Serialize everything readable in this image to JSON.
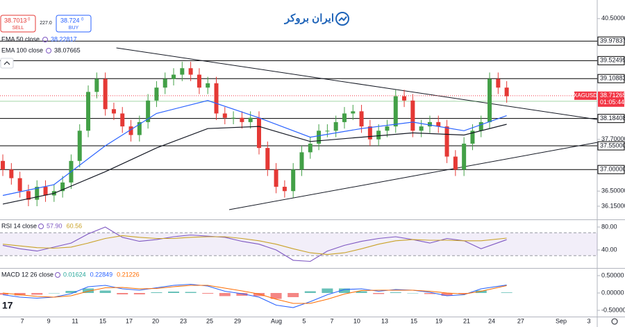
{
  "header": {
    "logo": "ایران بروکر",
    "sell": {
      "price": "38.7013",
      "pip": "0",
      "caption": "SELL"
    },
    "spread": "227.0",
    "buy": {
      "price": "38.724",
      "pip": "0",
      "caption": "BUY"
    }
  },
  "chart_data": [
    {
      "type": "candlestick",
      "xlim": [
        -0.33,
        69.6
      ],
      "ylim": [
        35.86,
        40.69
      ],
      "up_color": "#43a047",
      "down_color": "#e53935",
      "open": [
        37.2,
        37.0,
        36.8,
        36.5,
        36.3,
        36.6,
        36.4,
        36.5,
        36.7,
        37.2,
        37.9,
        38.8,
        39.1,
        38.4,
        38.3,
        38.0,
        37.8,
        38.1,
        38.6,
        38.9,
        39.1,
        39.2,
        39.35,
        39.2,
        38.9,
        39.0,
        38.3,
        38.2,
        38.2,
        38.1,
        38.2,
        37.5,
        37.0,
        36.6,
        36.5,
        37.0,
        37.4,
        37.6,
        37.9,
        37.9,
        38.1,
        38.3,
        38.35,
        38.0,
        37.7,
        37.9,
        38.0,
        38.7,
        38.6,
        37.9,
        38.0,
        38.1,
        38.0,
        37.3,
        37.0,
        37.6,
        37.9,
        38.1,
        39.1,
        38.9
      ],
      "high": [
        37.35,
        37.15,
        36.95,
        36.65,
        36.75,
        36.75,
        36.65,
        36.85,
        37.35,
        38.05,
        38.95,
        39.25,
        39.25,
        38.55,
        38.45,
        38.15,
        38.25,
        38.75,
        39.05,
        39.25,
        39.35,
        39.5,
        39.5,
        39.35,
        39.15,
        39.15,
        38.45,
        38.35,
        38.35,
        38.35,
        38.35,
        37.65,
        37.15,
        36.75,
        37.15,
        37.55,
        37.75,
        38.05,
        38.05,
        38.25,
        38.45,
        38.5,
        38.5,
        38.15,
        38.05,
        38.15,
        38.85,
        38.85,
        38.75,
        38.15,
        38.25,
        38.25,
        38.15,
        37.45,
        37.75,
        38.05,
        38.25,
        39.25,
        39.25,
        39.05
      ],
      "low": [
        36.85,
        36.65,
        36.35,
        36.15,
        36.15,
        36.25,
        36.25,
        36.35,
        36.55,
        37.05,
        37.75,
        38.65,
        38.25,
        38.15,
        37.85,
        37.65,
        37.65,
        37.95,
        38.45,
        38.75,
        38.95,
        39.05,
        39.05,
        38.75,
        38.75,
        38.15,
        38.05,
        38.05,
        37.95,
        37.95,
        37.35,
        36.85,
        36.45,
        36.35,
        36.35,
        36.85,
        37.25,
        37.45,
        37.75,
        37.75,
        37.95,
        38.15,
        37.85,
        37.55,
        37.55,
        37.75,
        37.85,
        38.45,
        37.75,
        37.75,
        37.85,
        37.85,
        37.15,
        36.85,
        36.85,
        37.45,
        37.75,
        37.95,
        38.75,
        38.55
      ],
      "close": [
        37.0,
        36.8,
        36.5,
        36.3,
        36.6,
        36.4,
        36.5,
        36.7,
        37.2,
        37.9,
        38.8,
        39.1,
        38.4,
        38.3,
        38.0,
        37.8,
        38.1,
        38.6,
        38.9,
        39.1,
        39.2,
        39.35,
        39.2,
        38.9,
        39.0,
        38.3,
        38.2,
        38.2,
        38.1,
        38.2,
        37.5,
        37.0,
        36.6,
        36.5,
        37.0,
        37.4,
        37.6,
        37.9,
        37.9,
        38.1,
        38.3,
        38.35,
        38.0,
        37.7,
        37.9,
        38.0,
        38.7,
        38.6,
        37.9,
        38.0,
        38.1,
        38.0,
        37.3,
        37.0,
        37.6,
        37.9,
        38.1,
        39.1,
        38.9,
        38.7
      ],
      "yticks": [
        {
          "value": 40.5,
          "label": "40.50000"
        },
        {
          "value": 37.7,
          "label": "37.70000"
        },
        {
          "value": 36.5,
          "label": "36.50000"
        },
        {
          "value": 36.15,
          "label": "36.15000"
        }
      ],
      "levels": [
        {
          "value": 39.97837,
          "label": "39.97837"
        },
        {
          "value": 39.52499,
          "label": "39.52499"
        },
        {
          "value": 39.10883,
          "label": "39.10883"
        },
        {
          "value": 38.18408,
          "label": "38.18408"
        },
        {
          "value": 37.55,
          "label": "37.55000"
        },
        {
          "value": 37.0,
          "label": "37.00000"
        }
      ],
      "series": [
        {
          "name": "EMA 50 close",
          "color": "#2962ff",
          "readout": 38.22817,
          "x": [
            0,
            6,
            12,
            18,
            24,
            30,
            36,
            42,
            48,
            54,
            59
          ],
          "values": [
            36.4,
            36.65,
            37.55,
            38.3,
            38.6,
            38.2,
            37.75,
            37.95,
            38.1,
            37.9,
            38.25
          ]
        },
        {
          "name": "EMA 100 close",
          "color": "#131722",
          "readout": 38.07665,
          "x": [
            0,
            6,
            12,
            18,
            24,
            30,
            36,
            42,
            48,
            54,
            59
          ],
          "values": [
            36.2,
            36.45,
            36.95,
            37.5,
            37.95,
            38.0,
            37.65,
            37.75,
            37.85,
            37.8,
            38.05
          ]
        }
      ],
      "trendlines": [
        {
          "x": [
            13.3,
            69.6
          ],
          "y": [
            39.82,
            38.16
          ]
        },
        {
          "x": [
            26.5,
            69.6
          ],
          "y": [
            36.07,
            37.63
          ]
        }
      ],
      "last_price": {
        "symbol": "XAGUSD",
        "value": 38.71265,
        "label": "38.71265",
        "countdown": "01:05:44",
        "color": "#f23645"
      },
      "marker": {
        "value": 38.58246,
        "label": "38.58246",
        "color": "#4caf50"
      }
    },
    {
      "type": "line",
      "title": "RSI 14 close",
      "xlim": [
        -0.33,
        69.6
      ],
      "ylim": [
        9.7,
        90.9
      ],
      "band": [
        30,
        70
      ],
      "band_color": "#7e57c2",
      "yticks": [
        {
          "value": 80,
          "label": "80.00"
        },
        {
          "value": 40,
          "label": "40.00"
        }
      ],
      "series": [
        {
          "color": "#7e57c2",
          "readout": {
            "value": 57.9,
            "label": "57.90"
          },
          "x": [
            0,
            2,
            4,
            6,
            8,
            10,
            12,
            14,
            16,
            18,
            20,
            22,
            24,
            26,
            28,
            30,
            32,
            34,
            36,
            38,
            40,
            42,
            44,
            46,
            48,
            50,
            52,
            54,
            56,
            59
          ],
          "values": [
            48,
            42,
            38,
            45,
            52,
            68,
            80,
            62,
            55,
            58,
            63,
            66,
            64,
            62,
            55,
            50,
            40,
            22,
            20,
            38,
            48,
            55,
            60,
            63,
            58,
            52,
            60,
            56,
            42,
            57.9
          ]
        },
        {
          "color": "#c9a227",
          "readout": {
            "value": 60.56,
            "label": "60.56"
          },
          "x": [
            0,
            2,
            4,
            6,
            8,
            10,
            12,
            14,
            16,
            18,
            20,
            22,
            24,
            26,
            28,
            30,
            32,
            34,
            36,
            38,
            40,
            42,
            44,
            46,
            48,
            50,
            52,
            54,
            56,
            59
          ],
          "values": [
            50,
            47,
            44,
            43,
            45,
            52,
            60,
            65,
            62,
            60,
            60,
            62,
            63,
            63,
            60,
            56,
            50,
            42,
            35,
            32,
            35,
            42,
            50,
            56,
            58,
            57,
            57,
            56,
            56,
            60.56
          ]
        }
      ]
    },
    {
      "type": "line",
      "title": "MACD 12 26 close",
      "xlim": [
        -0.33,
        69.6
      ],
      "ylim": [
        -0.66,
        0.68
      ],
      "yticks": [
        {
          "value": 0.5,
          "label": "0.50000"
        },
        {
          "value": 0,
          "label": "0.00000"
        },
        {
          "value": -0.5,
          "label": "-0.50000"
        }
      ],
      "xticks": [
        {
          "value": 2.28,
          "label": "7"
        },
        {
          "value": 5.37,
          "label": "9"
        },
        {
          "value": 8.46,
          "label": "11"
        },
        {
          "value": 11.71,
          "label": "15"
        },
        {
          "value": 14.8,
          "label": "17"
        },
        {
          "value": 17.89,
          "label": "20"
        },
        {
          "value": 21.14,
          "label": "23"
        },
        {
          "value": 24.23,
          "label": "25"
        },
        {
          "value": 27.48,
          "label": "29"
        },
        {
          "value": 32.03,
          "label": "Aug"
        },
        {
          "value": 35.28,
          "label": "5"
        },
        {
          "value": 38.54,
          "label": "7"
        },
        {
          "value": 41.46,
          "label": "10"
        },
        {
          "value": 44.72,
          "label": "13"
        },
        {
          "value": 48.13,
          "label": "15"
        },
        {
          "value": 51.06,
          "label": "19"
        },
        {
          "value": 54.31,
          "label": "21"
        },
        {
          "value": 57.24,
          "label": "24"
        },
        {
          "value": 60.65,
          "label": "27"
        },
        {
          "value": 65.37,
          "label": "Sep"
        },
        {
          "value": 68.62,
          "label": "3"
        }
      ],
      "series": [
        {
          "type": "bar",
          "color": "#26a69a",
          "negative_color": "#ef5350",
          "readout": 0.01624,
          "x": [
            0,
            2,
            4,
            6,
            8,
            10,
            12,
            14,
            16,
            18,
            20,
            22,
            24,
            26,
            28,
            30,
            32,
            34,
            36,
            38,
            40,
            42,
            44,
            46,
            48,
            50,
            52,
            54,
            56,
            59
          ],
          "values": [
            -0.05,
            -0.07,
            -0.05,
            0,
            0.06,
            0.13,
            0.07,
            -0.04,
            -0.04,
            0.02,
            0.04,
            0.03,
            -0.02,
            -0.09,
            -0.08,
            -0.09,
            -0.17,
            -0.12,
            0.05,
            0.13,
            0.13,
            0.05,
            -0.03,
            0.02,
            0,
            -0.03,
            -0.08,
            -0.02,
            0.07,
            0.01624
          ]
        },
        {
          "color": "#2962ff",
          "readout": 0.22849,
          "x": [
            0,
            2,
            4,
            6,
            8,
            10,
            12,
            14,
            16,
            18,
            20,
            22,
            24,
            26,
            28,
            30,
            32,
            34,
            36,
            38,
            40,
            42,
            44,
            46,
            48,
            50,
            52,
            54,
            56,
            59
          ],
          "values": [
            -0.05,
            -0.12,
            -0.15,
            -0.12,
            -0.02,
            0.18,
            0.22,
            0.12,
            0.08,
            0.15,
            0.22,
            0.25,
            0.2,
            0.05,
            -0.02,
            -0.12,
            -0.35,
            -0.42,
            -0.25,
            -0.05,
            0.1,
            0.12,
            0.05,
            0.1,
            0.08,
            0.02,
            -0.08,
            -0.05,
            0.12,
            0.22849
          ]
        },
        {
          "color": "#ff6d00",
          "readout": 0.21226,
          "x": [
            0,
            2,
            4,
            6,
            8,
            10,
            12,
            14,
            16,
            18,
            20,
            22,
            24,
            26,
            28,
            30,
            32,
            34,
            36,
            38,
            40,
            42,
            44,
            46,
            48,
            50,
            52,
            54,
            56,
            59
          ],
          "values": [
            0,
            -0.05,
            -0.1,
            -0.12,
            -0.08,
            0.05,
            0.15,
            0.16,
            0.12,
            0.13,
            0.18,
            0.22,
            0.22,
            0.14,
            0.06,
            -0.03,
            -0.18,
            -0.3,
            -0.3,
            -0.18,
            -0.03,
            0.07,
            0.08,
            0.08,
            0.08,
            0.05,
            0,
            -0.03,
            0.05,
            0.21226
          ]
        }
      ]
    }
  ]
}
